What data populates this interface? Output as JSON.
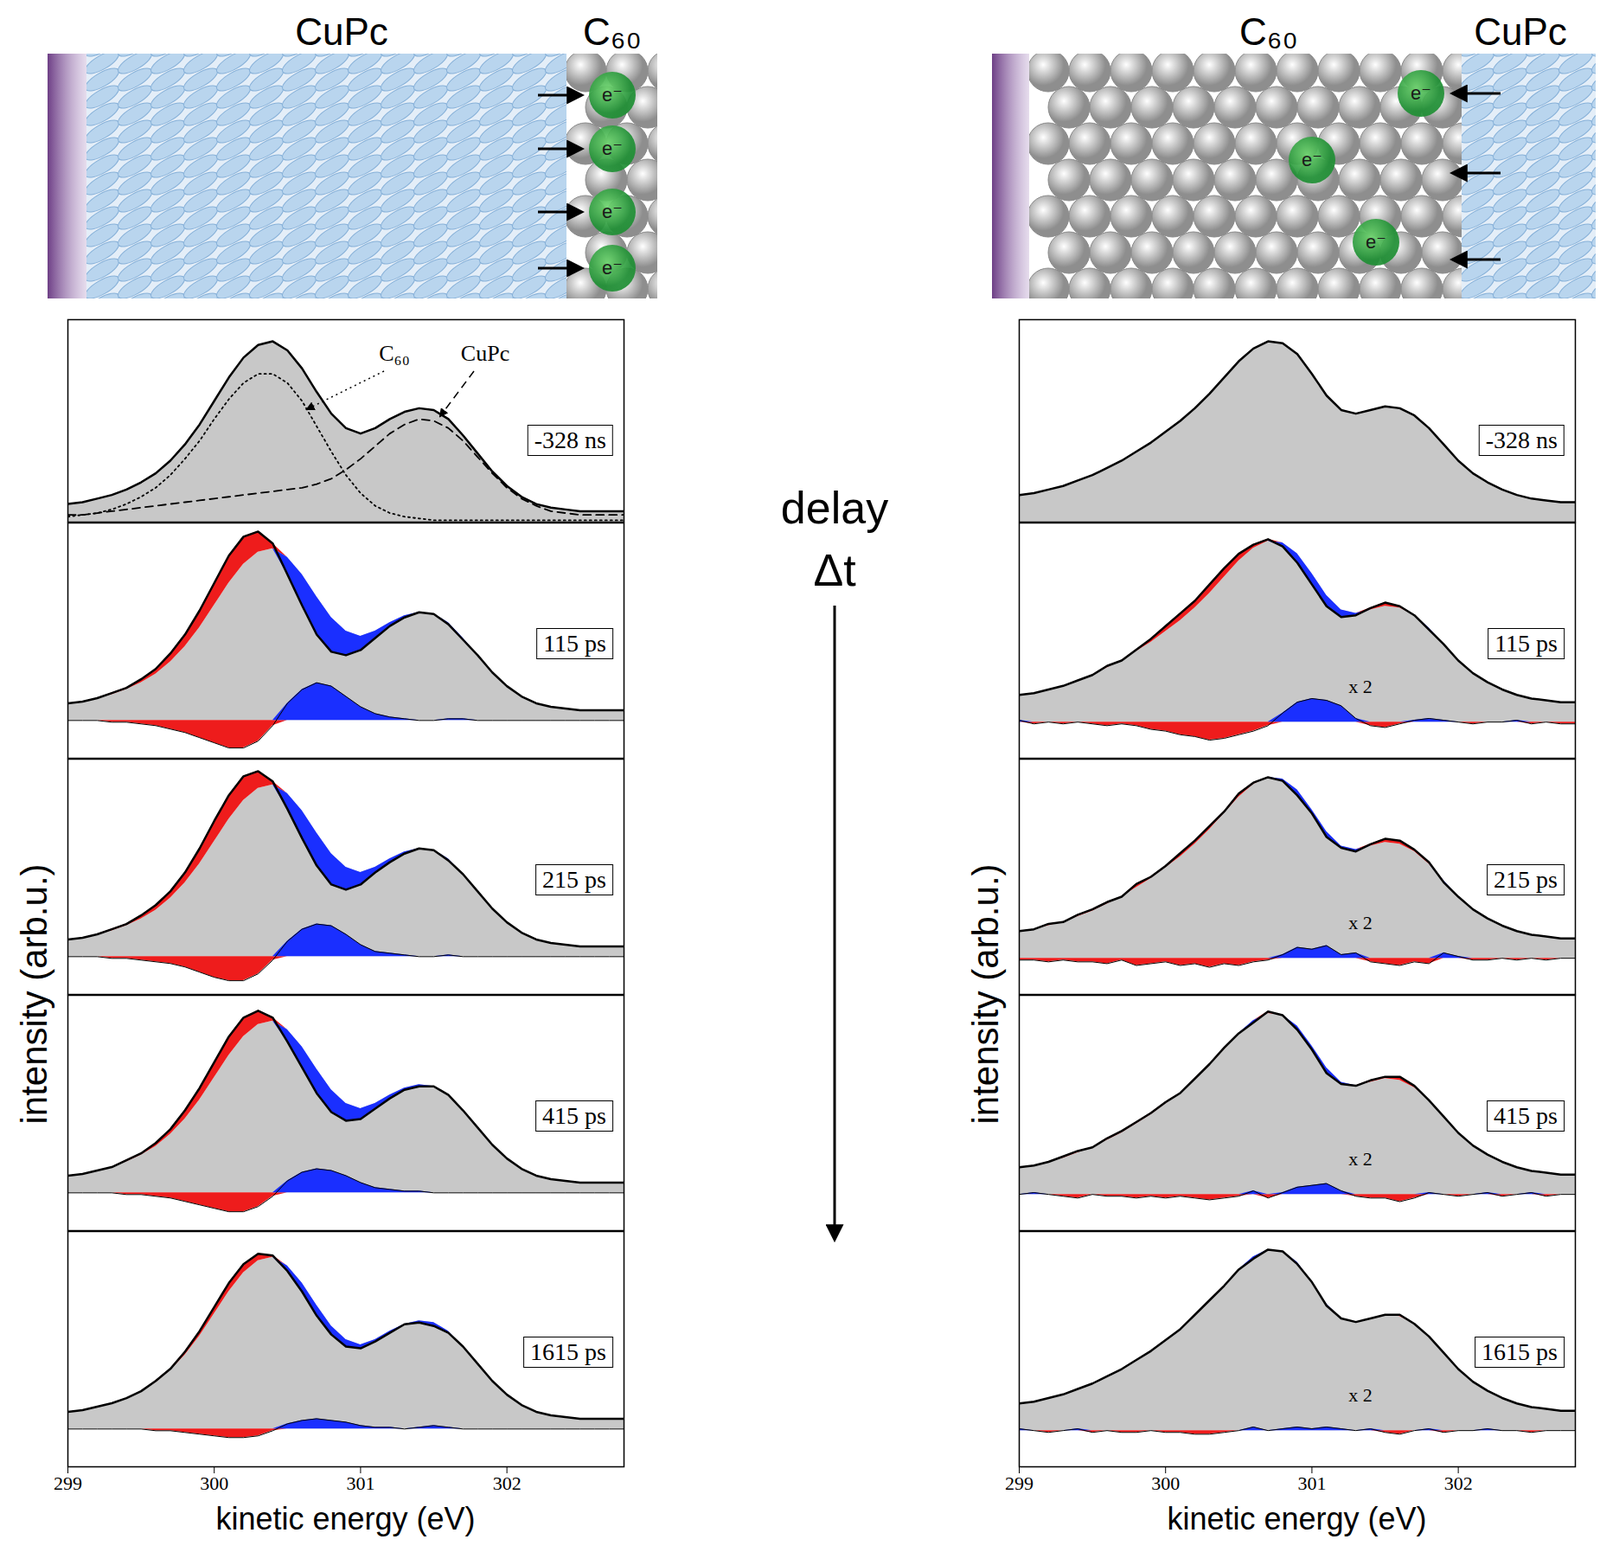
{
  "chart_data": [
    {
      "type": "line",
      "x_label": "kinetic energy (eV)",
      "y_label": "intensity (arb.u.)",
      "xlim": [
        299,
        302.8
      ],
      "xticks": [
        299,
        300,
        301,
        302
      ],
      "tick_labels": "x",
      "color": "#000000",
      "x": [
        299,
        299.1,
        299.2,
        299.3,
        299.4,
        299.5,
        299.6,
        299.7,
        299.8,
        299.9,
        300,
        300.1,
        300.2,
        300.3,
        300.4,
        300.5,
        300.6,
        300.7,
        300.8,
        300.9,
        301,
        301.1,
        301.2,
        301.3,
        301.4,
        301.5,
        301.6,
        301.7,
        301.8,
        301.9,
        302,
        302.1,
        302.2,
        302.3,
        302.4,
        302.5,
        302.6,
        302.7,
        302.8
      ],
      "reference": {
        "color": "#c8c8c8",
        "values": [
          0.1,
          0.11,
          0.13,
          0.15,
          0.18,
          0.22,
          0.27,
          0.34,
          0.43,
          0.54,
          0.67,
          0.8,
          0.91,
          0.98,
          1.0,
          0.95,
          0.85,
          0.72,
          0.6,
          0.52,
          0.49,
          0.52,
          0.57,
          0.61,
          0.63,
          0.62,
          0.57,
          0.48,
          0.38,
          0.28,
          0.2,
          0.14,
          0.1,
          0.08,
          0.07,
          0.06,
          0.06,
          0.06,
          0.06
        ]
      },
      "panels": [
        {
          "label": "-328 ns",
          "ylim": [
            0,
            1.12
          ],
          "components": [
            {
              "name": "C₆₀",
              "line_style": "dotted",
              "color": "#000000",
              "values": [
                0.03,
                0.04,
                0.05,
                0.07,
                0.1,
                0.14,
                0.19,
                0.26,
                0.35,
                0.45,
                0.57,
                0.68,
                0.77,
                0.82,
                0.82,
                0.77,
                0.67,
                0.53,
                0.39,
                0.26,
                0.16,
                0.09,
                0.05,
                0.03,
                0.02,
                0.01,
                0.01,
                0.01,
                0.01,
                0.01,
                0.01,
                0.01,
                0.01,
                0.01,
                0.01,
                0.01,
                0.01,
                0.01,
                0.01
              ]
            },
            {
              "name": "CuPc",
              "line_style": "dashed",
              "color": "#000000",
              "values": [
                0.04,
                0.04,
                0.05,
                0.06,
                0.07,
                0.08,
                0.09,
                0.1,
                0.11,
                0.12,
                0.13,
                0.14,
                0.15,
                0.16,
                0.17,
                0.18,
                0.19,
                0.21,
                0.24,
                0.29,
                0.35,
                0.42,
                0.49,
                0.54,
                0.57,
                0.56,
                0.52,
                0.45,
                0.36,
                0.27,
                0.19,
                0.13,
                0.09,
                0.06,
                0.05,
                0.04,
                0.04,
                0.04,
                0.04
              ]
            }
          ]
        },
        {
          "label": "115 ps",
          "ylim": [
            -0.22,
            1.15
          ],
          "values": [
            0.1,
            0.11,
            0.13,
            0.16,
            0.19,
            0.24,
            0.3,
            0.39,
            0.5,
            0.64,
            0.8,
            0.96,
            1.07,
            1.1,
            1.03,
            0.85,
            0.67,
            0.5,
            0.4,
            0.38,
            0.41,
            0.48,
            0.55,
            0.6,
            0.63,
            0.62,
            0.56,
            0.47,
            0.38,
            0.28,
            0.2,
            0.14,
            0.1,
            0.08,
            0.07,
            0.06,
            0.06,
            0.06,
            0.06
          ],
          "difference": [
            0,
            0,
            0,
            -0.01,
            -0.01,
            -0.02,
            -0.03,
            -0.05,
            -0.07,
            -0.1,
            -0.13,
            -0.16,
            -0.16,
            -0.12,
            -0.03,
            0.1,
            0.18,
            0.22,
            0.2,
            0.14,
            0.08,
            0.04,
            0.02,
            0.01,
            0,
            0,
            0.01,
            0.01,
            0,
            0,
            0,
            0,
            0,
            0,
            0,
            0,
            0,
            0,
            0
          ]
        },
        {
          "label": "215 ps",
          "ylim": [
            -0.22,
            1.15
          ],
          "values": [
            0.1,
            0.11,
            0.13,
            0.16,
            0.19,
            0.24,
            0.3,
            0.38,
            0.49,
            0.63,
            0.79,
            0.94,
            1.05,
            1.08,
            1.02,
            0.86,
            0.69,
            0.53,
            0.42,
            0.39,
            0.42,
            0.49,
            0.55,
            0.6,
            0.63,
            0.62,
            0.56,
            0.48,
            0.38,
            0.28,
            0.2,
            0.14,
            0.1,
            0.08,
            0.07,
            0.06,
            0.06,
            0.06,
            0.06
          ],
          "difference": [
            0,
            0,
            0,
            -0.01,
            -0.01,
            -0.02,
            -0.03,
            -0.04,
            -0.06,
            -0.09,
            -0.12,
            -0.14,
            -0.14,
            -0.1,
            -0.02,
            0.09,
            0.16,
            0.19,
            0.18,
            0.13,
            0.07,
            0.03,
            0.02,
            0.01,
            0,
            0,
            0.01,
            0,
            0,
            0,
            0,
            0,
            0,
            0,
            0,
            0,
            0,
            0,
            0
          ]
        },
        {
          "label": "415 ps",
          "ylim": [
            -0.22,
            1.15
          ],
          "values": [
            0.1,
            0.11,
            0.13,
            0.15,
            0.19,
            0.23,
            0.29,
            0.37,
            0.48,
            0.61,
            0.76,
            0.91,
            1.02,
            1.06,
            1.02,
            0.88,
            0.73,
            0.58,
            0.47,
            0.42,
            0.43,
            0.49,
            0.55,
            0.6,
            0.62,
            0.62,
            0.57,
            0.48,
            0.38,
            0.28,
            0.2,
            0.14,
            0.1,
            0.08,
            0.07,
            0.06,
            0.06,
            0.06,
            0.06
          ],
          "difference": [
            0,
            0,
            0,
            0,
            -0.01,
            -0.01,
            -0.02,
            -0.03,
            -0.05,
            -0.07,
            -0.09,
            -0.11,
            -0.11,
            -0.08,
            -0.02,
            0.07,
            0.12,
            0.14,
            0.13,
            0.1,
            0.06,
            0.03,
            0.02,
            0.01,
            0.01,
            0,
            0,
            0,
            0,
            0,
            0,
            0,
            0,
            0,
            0,
            0,
            0,
            0,
            0
          ]
        },
        {
          "label": "1615 ps",
          "ylim": [
            -0.22,
            1.15
          ],
          "values": [
            0.1,
            0.11,
            0.13,
            0.15,
            0.18,
            0.22,
            0.28,
            0.35,
            0.45,
            0.57,
            0.71,
            0.85,
            0.96,
            1.02,
            1.01,
            0.92,
            0.8,
            0.66,
            0.55,
            0.48,
            0.47,
            0.51,
            0.56,
            0.61,
            0.62,
            0.6,
            0.56,
            0.48,
            0.38,
            0.28,
            0.2,
            0.14,
            0.1,
            0.08,
            0.07,
            0.06,
            0.06,
            0.06,
            0.06
          ],
          "difference": [
            0,
            0,
            0,
            0,
            0,
            0,
            -0.01,
            -0.01,
            -0.02,
            -0.03,
            -0.04,
            -0.05,
            -0.05,
            -0.04,
            -0.01,
            0.03,
            0.05,
            0.06,
            0.05,
            0.04,
            0.02,
            0.01,
            0.01,
            0,
            0.01,
            0.02,
            0.01,
            0,
            0,
            0,
            0,
            0,
            0,
            0,
            0,
            0,
            0,
            0,
            0
          ]
        }
      ]
    },
    {
      "type": "line",
      "x_label": "kinetic energy (eV)",
      "y_label": "intensity (arb.u.)",
      "xlim": [
        299,
        302.8
      ],
      "xticks": [
        299,
        300,
        301,
        302
      ],
      "tick_labels": "x",
      "color": "#000000",
      "x": [
        299,
        299.1,
        299.2,
        299.3,
        299.4,
        299.5,
        299.6,
        299.7,
        299.8,
        299.9,
        300,
        300.1,
        300.2,
        300.3,
        300.4,
        300.5,
        300.6,
        300.7,
        300.8,
        300.9,
        301,
        301.1,
        301.2,
        301.3,
        301.4,
        301.5,
        301.6,
        301.7,
        301.8,
        301.9,
        302,
        302.1,
        302.2,
        302.3,
        302.4,
        302.5,
        302.6,
        302.7,
        302.8
      ],
      "reference": {
        "color": "#c8c8c8",
        "values": [
          0.15,
          0.16,
          0.18,
          0.2,
          0.23,
          0.26,
          0.3,
          0.34,
          0.39,
          0.44,
          0.5,
          0.56,
          0.63,
          0.71,
          0.8,
          0.89,
          0.96,
          1.0,
          0.99,
          0.93,
          0.82,
          0.7,
          0.62,
          0.6,
          0.62,
          0.64,
          0.63,
          0.59,
          0.52,
          0.43,
          0.34,
          0.27,
          0.22,
          0.18,
          0.15,
          0.13,
          0.12,
          0.11,
          0.11
        ]
      },
      "panels": [
        {
          "label": "-328 ns",
          "ylim": [
            0,
            1.12
          ]
        },
        {
          "label": "115 ps",
          "ylim": [
            -0.2,
            1.1
          ],
          "difference_label": "x 2",
          "values": [
            0.15,
            0.16,
            0.18,
            0.2,
            0.23,
            0.26,
            0.31,
            0.34,
            0.4,
            0.46,
            0.53,
            0.6,
            0.67,
            0.76,
            0.85,
            0.93,
            0.98,
            1.01,
            0.97,
            0.88,
            0.76,
            0.64,
            0.58,
            0.59,
            0.63,
            0.66,
            0.64,
            0.59,
            0.51,
            0.43,
            0.34,
            0.27,
            0.22,
            0.18,
            0.15,
            0.13,
            0.12,
            0.11,
            0.11
          ],
          "difference": [
            0.01,
            -0.01,
            0,
            -0.01,
            0,
            -0.01,
            -0.02,
            -0.01,
            -0.02,
            -0.04,
            -0.05,
            -0.07,
            -0.08,
            -0.1,
            -0.09,
            -0.07,
            -0.05,
            -0.02,
            0.05,
            0.11,
            0.13,
            0.12,
            0.09,
            0.02,
            -0.02,
            -0.03,
            -0.01,
            0.01,
            0.02,
            0.01,
            0,
            -0.01,
            0,
            0,
            0.01,
            -0.01,
            0,
            -0.01,
            -0.01
          ]
        },
        {
          "label": "215 ps",
          "ylim": [
            -0.2,
            1.1
          ],
          "difference_label": "x 2",
          "values": [
            0.15,
            0.16,
            0.19,
            0.2,
            0.24,
            0.27,
            0.31,
            0.34,
            0.41,
            0.45,
            0.51,
            0.58,
            0.65,
            0.73,
            0.81,
            0.91,
            0.97,
            1.0,
            0.98,
            0.9,
            0.8,
            0.67,
            0.61,
            0.59,
            0.63,
            0.66,
            0.65,
            0.6,
            0.53,
            0.42,
            0.34,
            0.27,
            0.22,
            0.18,
            0.15,
            0.13,
            0.12,
            0.11,
            0.11
          ],
          "difference": [
            -0.01,
            -0.01,
            -0.02,
            -0.01,
            -0.02,
            -0.02,
            -0.03,
            -0.01,
            -0.04,
            -0.03,
            -0.02,
            -0.04,
            -0.03,
            -0.05,
            -0.03,
            -0.04,
            -0.02,
            -0.01,
            0.02,
            0.06,
            0.05,
            0.07,
            0.02,
            0.03,
            -0.02,
            -0.03,
            -0.04,
            -0.02,
            -0.03,
            0.03,
            0.01,
            -0.01,
            -0.01,
            0,
            -0.01,
            0,
            -0.01,
            0,
            0
          ]
        },
        {
          "label": "415 ps",
          "ylim": [
            -0.2,
            1.1
          ],
          "difference_label": "x 2",
          "values": [
            0.15,
            0.16,
            0.18,
            0.21,
            0.24,
            0.26,
            0.31,
            0.35,
            0.4,
            0.45,
            0.51,
            0.56,
            0.64,
            0.72,
            0.81,
            0.89,
            0.95,
            1.01,
            0.99,
            0.91,
            0.8,
            0.67,
            0.61,
            0.6,
            0.63,
            0.65,
            0.65,
            0.6,
            0.52,
            0.43,
            0.34,
            0.27,
            0.22,
            0.18,
            0.15,
            0.13,
            0.12,
            0.11,
            0.11
          ],
          "difference": [
            0,
            0.01,
            0,
            -0.01,
            -0.02,
            0,
            -0.01,
            -0.01,
            -0.02,
            -0.01,
            -0.02,
            -0.01,
            -0.02,
            -0.03,
            -0.02,
            -0.01,
            0.02,
            -0.02,
            0.01,
            0.04,
            0.05,
            0.06,
            0.02,
            -0.01,
            -0.02,
            -0.02,
            -0.04,
            -0.02,
            0.01,
            0,
            -0.01,
            0,
            0.01,
            -0.01,
            0,
            0.01,
            -0.01,
            0,
            0
          ]
        },
        {
          "label": "1615 ps",
          "ylim": [
            -0.2,
            1.1
          ],
          "difference_label": "x 2",
          "values": [
            0.15,
            0.16,
            0.18,
            0.2,
            0.23,
            0.26,
            0.3,
            0.34,
            0.39,
            0.44,
            0.5,
            0.56,
            0.64,
            0.72,
            0.8,
            0.89,
            0.95,
            1.0,
            0.99,
            0.92,
            0.82,
            0.69,
            0.62,
            0.6,
            0.62,
            0.64,
            0.64,
            0.59,
            0.52,
            0.43,
            0.34,
            0.27,
            0.22,
            0.18,
            0.15,
            0.13,
            0.12,
            0.11,
            0.11
          ],
          "difference": [
            0.01,
            0,
            -0.01,
            0,
            0.01,
            -0.01,
            0,
            -0.01,
            -0.01,
            0,
            -0.01,
            -0.01,
            -0.02,
            -0.02,
            -0.01,
            0,
            0.02,
            0,
            0.01,
            0.02,
            0.01,
            0.02,
            0.01,
            0,
            0.01,
            -0.01,
            -0.02,
            0,
            0.01,
            -0.01,
            0,
            0,
            0.01,
            0,
            0,
            -0.01,
            0,
            0,
            0
          ]
        }
      ]
    }
  ],
  "schematics": [
    {
      "layers": [
        "CuPc",
        "C₆₀"
      ],
      "electron_label": "e⁻"
    },
    {
      "layers": [
        "C₆₀",
        "CuPc"
      ],
      "electron_label": "e⁻"
    }
  ],
  "delay_axis": {
    "lines": [
      "delay",
      "Δt"
    ]
  }
}
